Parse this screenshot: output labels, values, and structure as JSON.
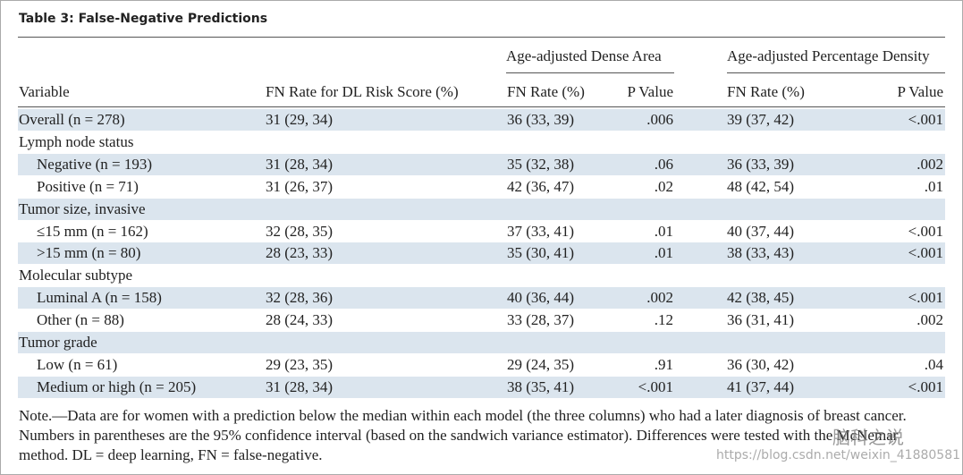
{
  "header": {
    "title": "Table 3: False-Negative Predictions"
  },
  "table": {
    "group_headers": [
      "Age-adjusted Dense Area",
      "Age-adjusted Percentage Density"
    ],
    "columns": [
      "Variable",
      "FN Rate for DL Risk Score (%)",
      "FN Rate (%)",
      "P Value",
      "FN Rate (%)",
      "P Value"
    ],
    "rows": [
      [
        "Overall (n = 278)",
        "31 (29, 34)",
        "36 (33, 39)",
        ".006",
        "39 (37, 42)",
        "<.001"
      ],
      [
        "Lymph node status"
      ],
      [
        "Negative (n = 193)",
        "31 (28, 34)",
        "35 (32, 38)",
        ".06",
        "36 (33, 39)",
        ".002"
      ],
      [
        "Positive (n = 71)",
        "31 (26, 37)",
        "42 (36, 47)",
        ".02",
        "48 (42, 54)",
        ".01"
      ],
      [
        "Tumor size, invasive"
      ],
      [
        "≤15 mm (n = 162)",
        "32 (28, 35)",
        "37 (33, 41)",
        ".01",
        "40 (37, 44)",
        "<.001"
      ],
      [
        ">15 mm (n = 80)",
        "28 (23, 33)",
        "35 (30, 41)",
        ".01",
        "38 (33, 43)",
        "<.001"
      ],
      [
        "Molecular subtype"
      ],
      [
        "Luminal A (n = 158)",
        "32 (28, 36)",
        "40 (36, 44)",
        ".002",
        "42 (38, 45)",
        "<.001"
      ],
      [
        "Other (n = 88)",
        "28 (24, 33)",
        "33 (28, 37)",
        ".12",
        "36 (31, 41)",
        ".002"
      ],
      [
        "Tumor grade"
      ],
      [
        "Low (n = 61)",
        "29 (23, 35)",
        "29 (24, 35)",
        ".91",
        "36 (30, 42)",
        ".04"
      ],
      [
        "Medium or high (n = 205)",
        "31 (28, 34)",
        "38 (35, 41)",
        "<.001",
        "41 (37, 44)",
        "<.001"
      ]
    ]
  },
  "note": "Note.—Data are for women with a prediction below the median within each model (the three columns) who had a later diagnosis of breast cancer. Numbers in parentheses are the 95% confidence interval (based on the sandwich variance estimator). Differences were tested with the McNemar method. DL = deep learning, FN = false-negative.",
  "watermark": {
    "text": "脑科之说",
    "url": "https://blog.csdn.net/weixin_41880581"
  }
}
